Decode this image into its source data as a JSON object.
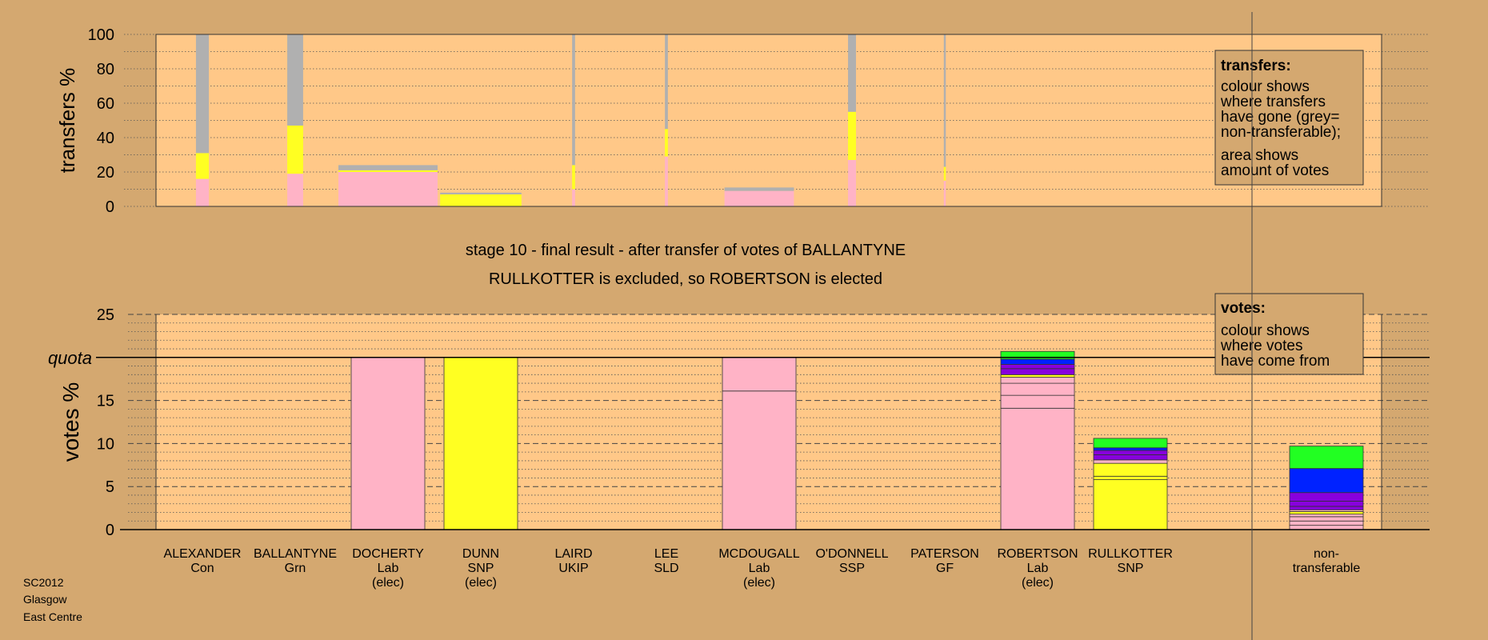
{
  "chart_data": [
    {
      "type": "bar",
      "ylabel": "transfers %",
      "ylim": [
        0,
        100
      ],
      "yticks": [
        "0",
        "20",
        "40",
        "60",
        "80",
        "100"
      ],
      "note_lines": [
        "transfers:",
        "colour shows",
        "where transfers",
        "have gone (grey=",
        "non-transferable);",
        "area shows",
        "amount of votes"
      ],
      "bars": [
        {
          "candidate": "ALEXANDER",
          "width_share": 0.13,
          "segments": [
            {
              "color": "#ffb3c6",
              "value": 16
            },
            {
              "color": "#ffff22",
              "value": 15
            },
            {
              "color": "#b0b0b0",
              "value": 69
            }
          ]
        },
        {
          "candidate": "BALLANTYNE",
          "width_share": 0.16,
          "segments": [
            {
              "color": "#ffb3c6",
              "value": 19
            },
            {
              "color": "#ffff22",
              "value": 28
            },
            {
              "color": "#b0b0b0",
              "value": 53
            }
          ]
        },
        {
          "candidate": "DOCHERTY",
          "width_share": 1.0,
          "segments": [
            {
              "color": "#ffb3c6",
              "value": 20
            },
            {
              "color": "#ffff22",
              "value": 1
            },
            {
              "color": "#b0b0b0",
              "value": 3
            }
          ]
        },
        {
          "candidate": "DUNN",
          "width_share": 0.82,
          "segments": [
            {
              "color": "#ffff22",
              "value": 7
            },
            {
              "color": "#b0b0b0",
              "value": 1
            }
          ]
        },
        {
          "candidate": "LAIRD",
          "width_share": 0.03,
          "segments": [
            {
              "color": "#ffb3c6",
              "value": 10
            },
            {
              "color": "#ffff22",
              "value": 14
            },
            {
              "color": "#b0b0b0",
              "value": 76
            }
          ]
        },
        {
          "candidate": "LEE",
          "width_share": 0.03,
          "segments": [
            {
              "color": "#ffb3c6",
              "value": 29
            },
            {
              "color": "#ffff22",
              "value": 16
            },
            {
              "color": "#b0b0b0",
              "value": 55
            }
          ]
        },
        {
          "candidate": "MCDOUGALL",
          "width_share": 0.7,
          "segments": [
            {
              "color": "#ffb3c6",
              "value": 9
            },
            {
              "color": "#b0b0b0",
              "value": 2
            }
          ]
        },
        {
          "candidate": "O'DONNELL",
          "width_share": 0.08,
          "segments": [
            {
              "color": "#ffb3c6",
              "value": 27
            },
            {
              "color": "#ffff22",
              "value": 28
            },
            {
              "color": "#b0b0b0",
              "value": 45
            }
          ]
        },
        {
          "candidate": "PATERSON",
          "width_share": 0.02,
          "segments": [
            {
              "color": "#ffb3c6",
              "value": 15
            },
            {
              "color": "#ffff22",
              "value": 8
            },
            {
              "color": "#b0b0b0",
              "value": 77
            }
          ]
        },
        {
          "candidate": "ROBERTSON",
          "width_share": 0,
          "segments": []
        },
        {
          "candidate": "RULLKOTTER",
          "width_share": 0,
          "segments": []
        }
      ]
    },
    {
      "type": "bar",
      "title_lines": [
        "stage 10 - final result - after transfer of votes of BALLANTYNE",
        "RULLKOTTER is excluded, so ROBERTSON is elected"
      ],
      "ylabel": "votes %",
      "ylim": [
        0,
        25
      ],
      "yticks": [
        "0",
        "5",
        "10",
        "15",
        "20",
        "25"
      ],
      "quota_label": "quota",
      "quota": 20,
      "note_lines": [
        "votes:",
        "colour shows",
        "where votes",
        "have come from"
      ],
      "candidates": [
        {
          "name": "ALEXANDER",
          "party": "Con",
          "status": "",
          "segments": []
        },
        {
          "name": "BALLANTYNE",
          "party": "Grn",
          "status": "",
          "segments": []
        },
        {
          "name": "DOCHERTY",
          "party": "Lab",
          "status": "(elec)",
          "segments": [
            {
              "color": "#ffb3c6",
              "value": 20
            }
          ]
        },
        {
          "name": "DUNN",
          "party": "SNP",
          "status": "(elec)",
          "segments": [
            {
              "color": "#ffff22",
              "value": 20
            }
          ]
        },
        {
          "name": "LAIRD",
          "party": "UKIP",
          "status": "",
          "segments": []
        },
        {
          "name": "LEE",
          "party": "SLD",
          "status": "",
          "segments": []
        },
        {
          "name": "MCDOUGALL",
          "party": "Lab",
          "status": "(elec)",
          "segments": [
            {
              "color": "#ffb3c6",
              "value": 16.1
            },
            {
              "color": "#ffb3c6",
              "value": 3.9
            }
          ]
        },
        {
          "name": "O'DONNELL",
          "party": "SSP",
          "status": "",
          "segments": []
        },
        {
          "name": "PATERSON",
          "party": "GF",
          "status": "",
          "segments": []
        },
        {
          "name": "ROBERTSON",
          "party": "Lab",
          "status": "(elec)",
          "segments": [
            {
              "color": "#ffb3c6",
              "value": 14.1
            },
            {
              "color": "#ffb3c6",
              "value": 1.5
            },
            {
              "color": "#ffb3c6",
              "value": 1.4
            },
            {
              "color": "#ffb3c6",
              "value": 0.7
            },
            {
              "color": "#ffff22",
              "value": 0.3
            },
            {
              "color": "#8800dd",
              "value": 0.7
            },
            {
              "color": "#8800dd",
              "value": 0.5
            },
            {
              "color": "#0022ff",
              "value": 0.6
            },
            {
              "color": "#22ff22",
              "value": 0.9
            }
          ]
        },
        {
          "name": "RULLKOTTER",
          "party": "SNP",
          "status": "",
          "segments": [
            {
              "color": "#ffff22",
              "value": 5.8
            },
            {
              "color": "#ffff22",
              "value": 0.4
            },
            {
              "color": "#ffff22",
              "value": 1.5
            },
            {
              "color": "#ffb3c6",
              "value": 0.4
            },
            {
              "color": "#8800dd",
              "value": 0.6
            },
            {
              "color": "#8800dd",
              "value": 0.5
            },
            {
              "color": "#0022ff",
              "value": 0.3
            },
            {
              "color": "#22ff22",
              "value": 1.1
            }
          ]
        },
        {
          "name": "non-",
          "party": "transferable",
          "status": "",
          "segments": [
            {
              "color": "#ffb3c6",
              "value": 0.5
            },
            {
              "color": "#ffb3c6",
              "value": 0.5
            },
            {
              "color": "#ffb3c6",
              "value": 0.5
            },
            {
              "color": "#ffb3c6",
              "value": 0.3
            },
            {
              "color": "#ffff22",
              "value": 0.3
            },
            {
              "color": "#ffb3c6",
              "value": 0.2
            },
            {
              "color": "#8800dd",
              "value": 0.4
            },
            {
              "color": "#8800dd",
              "value": 0.6
            },
            {
              "color": "#8800dd",
              "value": 1.0
            },
            {
              "color": "#0022ff",
              "value": 2.8
            },
            {
              "color": "#22ff22",
              "value": 2.6
            }
          ]
        }
      ]
    }
  ],
  "footer_lines": [
    "SC2012",
    "Glasgow",
    "East Centre"
  ],
  "colors": {
    "page_bg": "#d4a870",
    "plot_bg": "#ffc888",
    "note_bg": "#d4a870",
    "pink": "#ffb3c6",
    "yellow": "#ffff22",
    "grey": "#b0b0b0",
    "purple": "#8800dd",
    "blue": "#0022ff",
    "green": "#22ff22"
  }
}
